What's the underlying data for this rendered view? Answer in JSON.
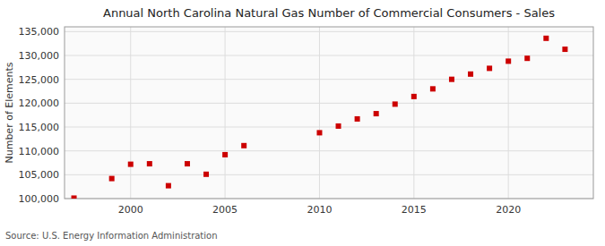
{
  "chart_data": {
    "type": "scatter",
    "title": "Annual North Carolina Natural Gas Number of Commercial Consumers - Sales",
    "ylabel": "Number of Elements",
    "annotations": [
      "Source: U.S. Energy Information Administration"
    ],
    "x": [
      1997,
      1999,
      2000,
      2001,
      2002,
      2003,
      2004,
      2005,
      2006,
      2010,
      2011,
      2012,
      2013,
      2014,
      2015,
      2016,
      2017,
      2018,
      2019,
      2020,
      2021,
      2022,
      2023
    ],
    "values": [
      100100,
      104200,
      107200,
      107300,
      102700,
      107300,
      105100,
      109200,
      111100,
      113800,
      115200,
      116700,
      117800,
      119800,
      121400,
      123000,
      125000,
      126100,
      127300,
      128800,
      129400,
      133600,
      131300
    ],
    "color": "#cc0000",
    "marker": "square",
    "grid": true,
    "xlim": [
      1996.5,
      2024.5
    ],
    "xticks": [
      2000,
      2005,
      2010,
      2015,
      2020
    ],
    "ylim": [
      100000,
      136000
    ],
    "yticks": [
      {
        "value": 100000,
        "label": "100,000"
      },
      {
        "value": 105000,
        "label": "105,000"
      },
      {
        "value": 110000,
        "label": "110,000"
      },
      {
        "value": 115000,
        "label": "115,000"
      },
      {
        "value": 120000,
        "label": "120,000"
      },
      {
        "value": 125000,
        "label": "125,000"
      },
      {
        "value": 130000,
        "label": "130,000"
      },
      {
        "value": 135000,
        "label": "135,000"
      }
    ]
  }
}
